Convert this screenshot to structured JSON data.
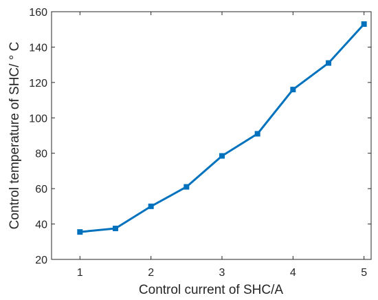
{
  "chart_data": {
    "type": "line",
    "xlabel": "Control current of SHC/A",
    "ylabel": "Control temperature of SHC/ ° C",
    "xlim": [
      0.6,
      5.1
    ],
    "ylim": [
      20,
      160
    ],
    "xticks": [
      1,
      2,
      3,
      4,
      5
    ],
    "yticks": [
      20,
      40,
      60,
      80,
      100,
      120,
      140,
      160
    ],
    "grid": false,
    "series": [
      {
        "color": "#0072bd",
        "marker": "square",
        "x": [
          1,
          1.5,
          2,
          2.5,
          3,
          3.5,
          4,
          4.5,
          5
        ],
        "y": [
          35.5,
          37.5,
          50,
          61,
          78.5,
          91,
          116,
          131,
          153
        ]
      }
    ]
  }
}
